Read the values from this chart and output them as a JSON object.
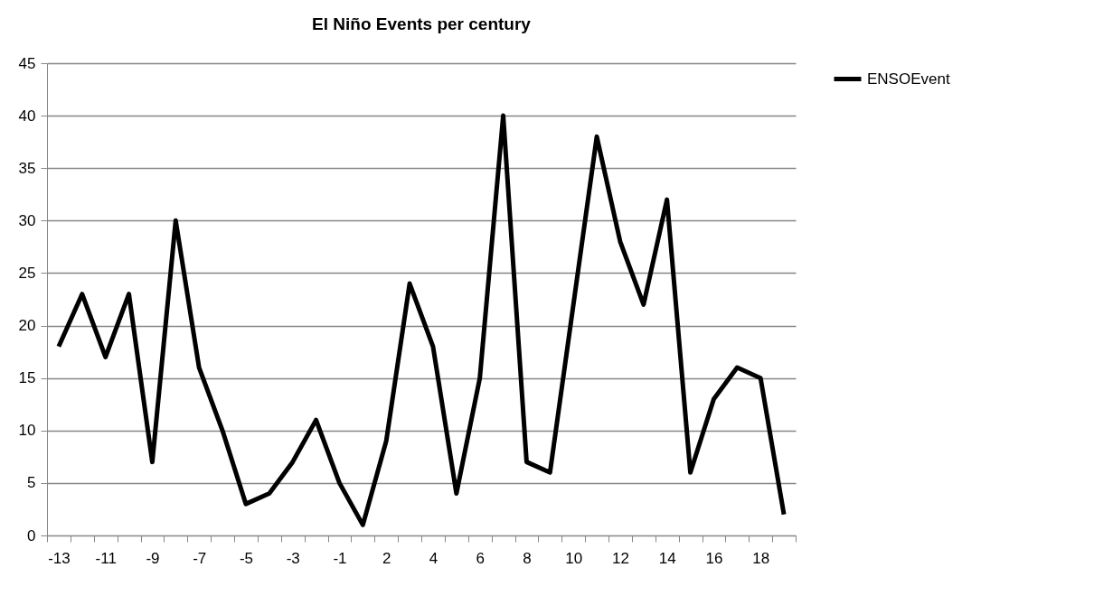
{
  "chart_data": {
    "type": "line",
    "title": "El Niño Events per century",
    "categories": [
      "-13",
      null,
      "-11",
      null,
      "-9",
      null,
      "-7",
      null,
      "-5",
      null,
      "-3",
      null,
      "-1",
      null,
      "2",
      null,
      "4",
      null,
      "6",
      null,
      "8",
      null,
      "10",
      null,
      "12",
      null,
      "14",
      null,
      "16",
      null,
      "18",
      null
    ],
    "series": [
      {
        "name": "ENSOEvent",
        "color": "#000000",
        "values": [
          18,
          23,
          17,
          23,
          7,
          30,
          16,
          10,
          3,
          4,
          7,
          11,
          5,
          1,
          9,
          24,
          18,
          4,
          15,
          40,
          7,
          6,
          22,
          38,
          28,
          22,
          32,
          6,
          13,
          16,
          15,
          2
        ]
      }
    ],
    "ylim": [
      0,
      45
    ],
    "yticks": [
      0,
      5,
      10,
      15,
      20,
      25,
      30,
      35,
      40,
      45
    ],
    "grid": "y",
    "legend": "right",
    "marker": "none",
    "line_style": "solid"
  }
}
